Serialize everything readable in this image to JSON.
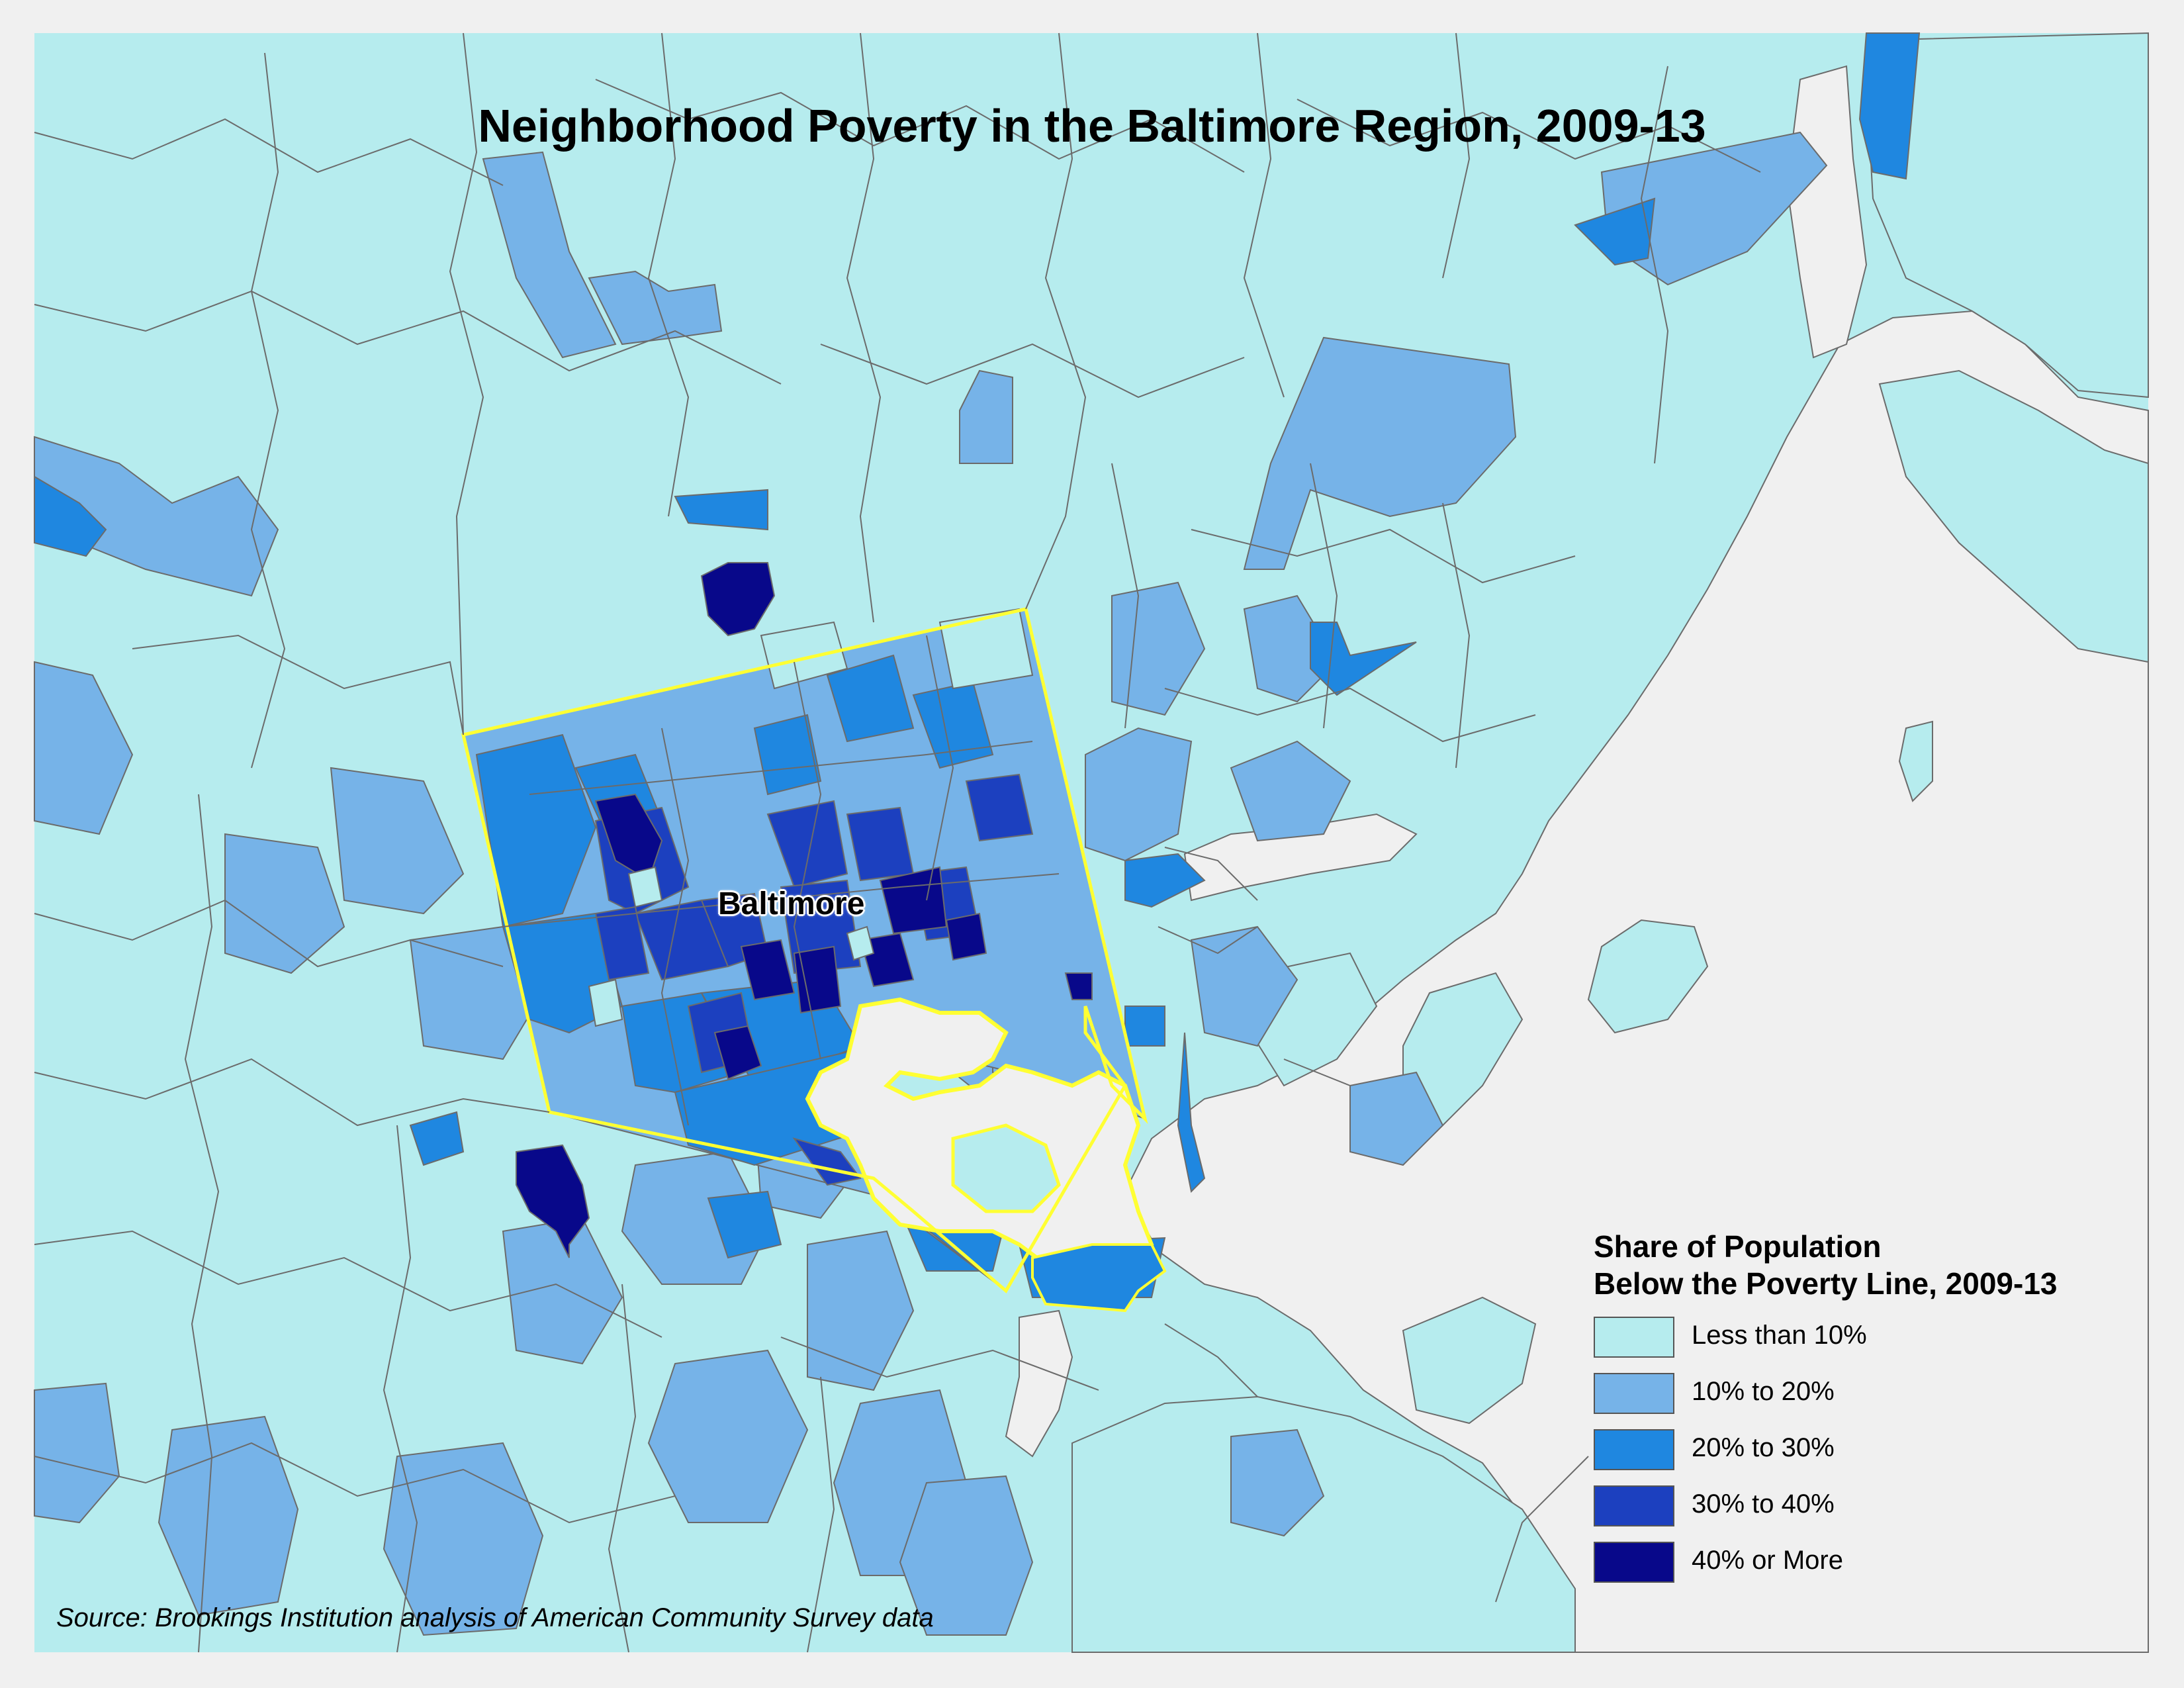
{
  "title": "Neighborhood Poverty in the Baltimore Region, 2009-13",
  "city_label": "Baltimore",
  "legend": {
    "title_line1": "Share of Population",
    "title_line2": "Below the Poverty Line, 2009-13",
    "items": [
      {
        "label": "Less than 10%",
        "color": "#b6ecee"
      },
      {
        "label": "10% to 20%",
        "color": "#76b3e8"
      },
      {
        "label": "20% to 30%",
        "color": "#1f87e0"
      },
      {
        "label": "30% to 40%",
        "color": "#1c40bf"
      },
      {
        "label": "40% or More",
        "color": "#08088a"
      }
    ]
  },
  "source": "Source: Brookings Institution analysis of American Community Survey data",
  "colors": {
    "background": "#f0f0f0",
    "water": "#f0f0f0",
    "tract_border": "#6b6b6b",
    "city_boundary": "#ffff33"
  }
}
